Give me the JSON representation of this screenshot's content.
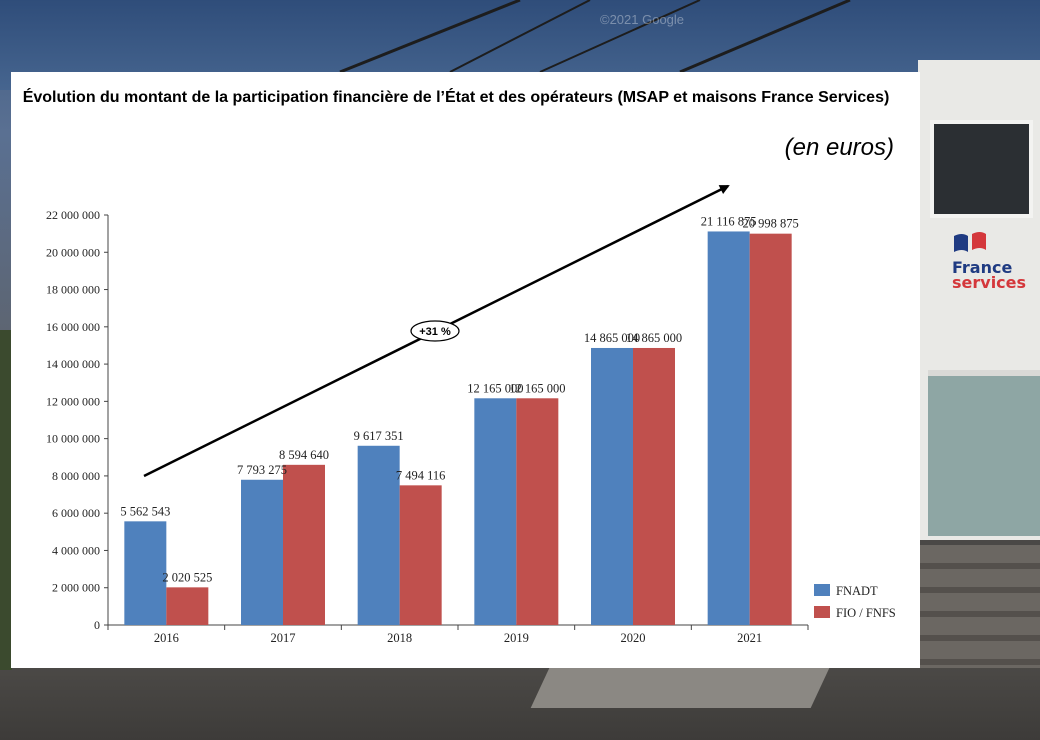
{
  "page": {
    "watermark": "©2021 Google",
    "sign": {
      "line1": "France",
      "line2": "services"
    }
  },
  "colors": {
    "fnadt": "#4f81bd",
    "fio_fnfs": "#c0504d",
    "sign_blue": "#1f3b82",
    "sign_red": "#d4373b"
  },
  "chart_data": {
    "type": "bar",
    "title": "Évolution du montant de la participation financière de l’État et des opérateurs (MSAP et maisons France Services)",
    "unit_note": "(en euros)",
    "categories": [
      "2016",
      "2017",
      "2018",
      "2019",
      "2020",
      "2021"
    ],
    "series": [
      {
        "name": "FNADT",
        "color": "#4f81bd",
        "values": [
          5562543,
          7793275,
          9617351,
          12165000,
          14865000,
          21116875
        ],
        "labels": [
          "5 562 543",
          "7 793 275",
          "9 617 351",
          "12 165 000",
          "14 865 000",
          "21 116 875"
        ]
      },
      {
        "name": "FIO / FNFS",
        "color": "#c0504d",
        "values": [
          2020525,
          8594640,
          7494116,
          12165000,
          14865000,
          20998875
        ],
        "labels": [
          "2 020 525",
          "8 594 640",
          "7 494 116",
          "12 165 000",
          "14 865 000",
          "20 998 875"
        ]
      }
    ],
    "ylim": [
      0,
      22000000
    ],
    "yticks": [
      0,
      2000000,
      4000000,
      6000000,
      8000000,
      10000000,
      12000000,
      14000000,
      16000000,
      18000000,
      20000000,
      22000000
    ],
    "ytick_labels": [
      "0",
      "2 000 000",
      "4 000 000",
      "6 000 000",
      "8 000 000",
      "10 000 000",
      "12 000 000",
      "14 000 000",
      "16 000 000",
      "18 000 000",
      "20 000 000",
      "22 000 000"
    ],
    "grid": false,
    "legend": "bottom-right",
    "annotation": {
      "text": "+31 %",
      "type": "trend-arrow"
    }
  }
}
